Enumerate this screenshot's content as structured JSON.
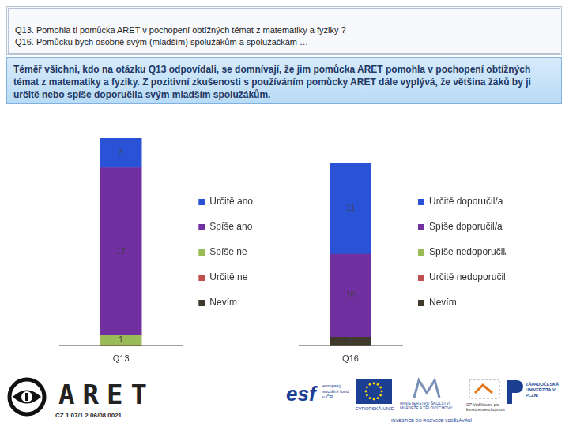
{
  "header": {
    "lines": [
      "Q13. Pomohla ti pomůcka ARET v pochopení obtížných témat z matematiky a fyziky ?",
      "Q16. Pomůcku bych osobně svým (mladším) spolužákům a spolužačkám …"
    ]
  },
  "summary": "Téměř všichni, kdo na otázku Q13 odpovídali, se domnívají, že jim pomůcka ARET pomohla v pochopení obtížných témat z matematiky a fyziky. Z pozitivní zkušenosti s používáním pomůcky ARET dále vyplývá, že většina žáků by ji určitě nebo spíše doporučila svým mladším spolužákům.",
  "chart_data": [
    {
      "type": "bar",
      "stacked": true,
      "categories": [
        "Q13"
      ],
      "series": [
        {
          "name": "Určitě ano",
          "color": "#2a52d6",
          "values": [
            3
          ]
        },
        {
          "name": "Spíše ano",
          "color": "#7030a0",
          "values": [
            17
          ]
        },
        {
          "name": "Spíše ne",
          "color": "#9bbb59",
          "values": [
            1
          ]
        },
        {
          "name": "Určitě ne",
          "color": "#c0504d",
          "values": [
            0
          ]
        },
        {
          "name": "Nevím",
          "color": "#3f3a2b",
          "values": [
            0
          ]
        }
      ],
      "ylim": [
        0,
        21
      ],
      "tick_labels": "x",
      "data_labels": true,
      "legend": "right",
      "grid": false
    },
    {
      "type": "bar",
      "stacked": true,
      "categories": [
        "Q16"
      ],
      "series": [
        {
          "name": "Určitě doporučil/a",
          "color": "#2a52d6",
          "values": [
            11
          ]
        },
        {
          "name": "Spíše doporučil/a",
          "color": "#7030a0",
          "values": [
            10
          ]
        },
        {
          "name": "Spíše nedoporučil/a",
          "color": "#9bbb59",
          "values": [
            0
          ]
        },
        {
          "name": "Určitě nedoporučil/a",
          "color": "#c0504d",
          "values": [
            0
          ]
        },
        {
          "name": "Nevím",
          "color": "#3f3a2b",
          "values": [
            1
          ]
        }
      ],
      "ylim": [
        0,
        25
      ],
      "tick_labels": "x",
      "data_labels": true,
      "legend": "right",
      "grid": false
    }
  ],
  "footer": {
    "project_logo": "ARET",
    "project_number": "CZ.1.07/1.2.06/08.0021",
    "esf_mark": "esf",
    "esf_text": "evropský sociální fond v ČR",
    "eu_text": "EVROPSKÁ UNIE",
    "msmt_text": "MINISTERSTVO ŠKOLSTVÍ, MLÁDEŽE A TĚLOVÝCHOVY",
    "op_text": "OP Vzdělávání pro konkurenceschopnost",
    "zcu_text": "ZÁPADOČESKÁ UNIVERZITA V PLZNI",
    "slogan": "INVESTICE DO ROZVOJE VZDĚLÁVÁNÍ"
  }
}
